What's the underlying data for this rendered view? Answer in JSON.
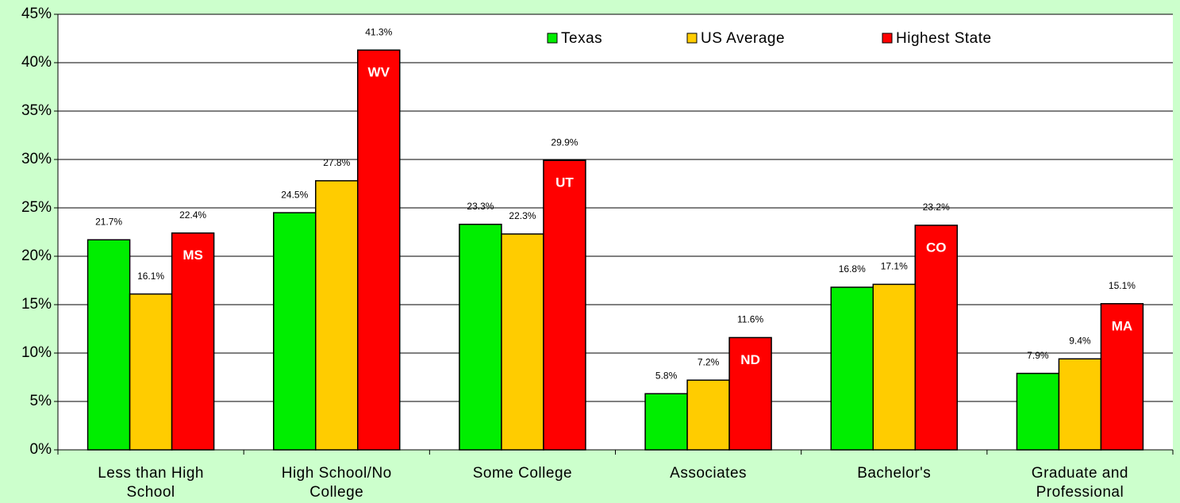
{
  "chart_data": {
    "type": "bar",
    "categories": [
      "Less than High School",
      "High School/No College",
      "Some College",
      "Associates",
      "Bachelor's",
      "Graduate and Professional"
    ],
    "series": [
      {
        "name": "Texas",
        "color": "#00ee00",
        "values": [
          21.7,
          24.5,
          23.3,
          5.8,
          16.8,
          7.9
        ],
        "value_labels": [
          "21.7%",
          "24.5%",
          "23.3%",
          "5.8%",
          "16.8%",
          "7.9%"
        ]
      },
      {
        "name": "US Average",
        "color": "#ffcc00",
        "values": [
          16.1,
          27.8,
          22.3,
          7.2,
          17.1,
          9.4
        ],
        "value_labels": [
          "16.1%",
          "27.8%",
          "22.3%",
          "7.2%",
          "17.1%",
          "9.4%"
        ]
      },
      {
        "name": "Highest State",
        "color": "#ff0000",
        "values": [
          22.4,
          41.3,
          29.9,
          11.6,
          23.2,
          15.1
        ],
        "value_labels": [
          "22.4%",
          "41.3%",
          "29.9%",
          "11.6%",
          "23.2%",
          "15.1%"
        ],
        "inner_labels": [
          "MS",
          "WV",
          "UT",
          "ND",
          "CO",
          "MA"
        ]
      }
    ],
    "ylim": [
      0,
      45
    ],
    "yticks": [
      {
        "value": 0,
        "label": "0%"
      },
      {
        "value": 5,
        "label": "5%"
      },
      {
        "value": 10,
        "label": "10%"
      },
      {
        "value": 15,
        "label": "15%"
      },
      {
        "value": 20,
        "label": "20%"
      },
      {
        "value": 25,
        "label": "25%"
      },
      {
        "value": 30,
        "label": "30%"
      },
      {
        "value": 35,
        "label": "35%"
      },
      {
        "value": 40,
        "label": "40%"
      },
      {
        "value": 45,
        "label": "45%"
      }
    ],
    "grid": true,
    "legend": "top"
  }
}
